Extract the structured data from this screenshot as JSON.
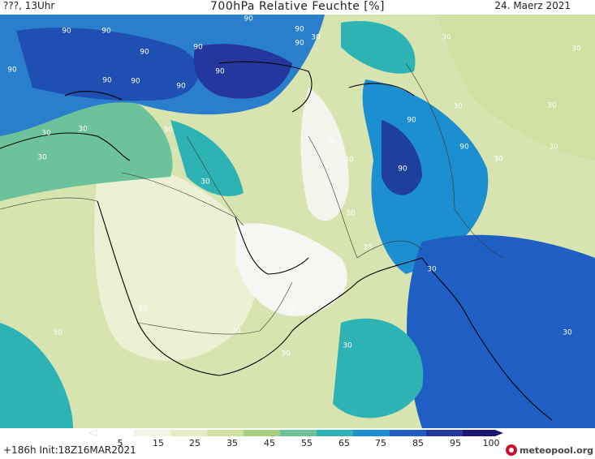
{
  "header": {
    "left": "???, 13Uhr",
    "title": "700hPa Relative Feuchte [%]",
    "date": "24. Maerz 2021"
  },
  "map": {
    "contour_labels": [
      "90",
      "90",
      "90",
      "90",
      "90",
      "90",
      "90",
      "90",
      "90",
      "90",
      "90",
      "90",
      "90",
      "90",
      "90",
      "30",
      "30",
      "30",
      "30",
      "30",
      "30",
      "30",
      "30",
      "30",
      "30",
      "30",
      "30",
      "30",
      "30",
      "30",
      "30",
      "30",
      "30",
      "30",
      "30",
      "30",
      "30",
      "30",
      "30"
    ]
  },
  "legend": {
    "colors": [
      "#ffffff",
      "#f2f4e6",
      "#e6ecc8",
      "#cfe0a0",
      "#a8d080",
      "#6cc39a",
      "#2eb3b4",
      "#1d8fd0",
      "#1f5fc4",
      "#23379c",
      "#1c1870"
    ],
    "labels": [
      "5",
      "15",
      "25",
      "35",
      "45",
      "55",
      "65",
      "75",
      "85",
      "95",
      "100"
    ]
  },
  "footer": {
    "run": "+186h  Init:18Z16MAR2021",
    "logo_text": "meteopool.org"
  }
}
